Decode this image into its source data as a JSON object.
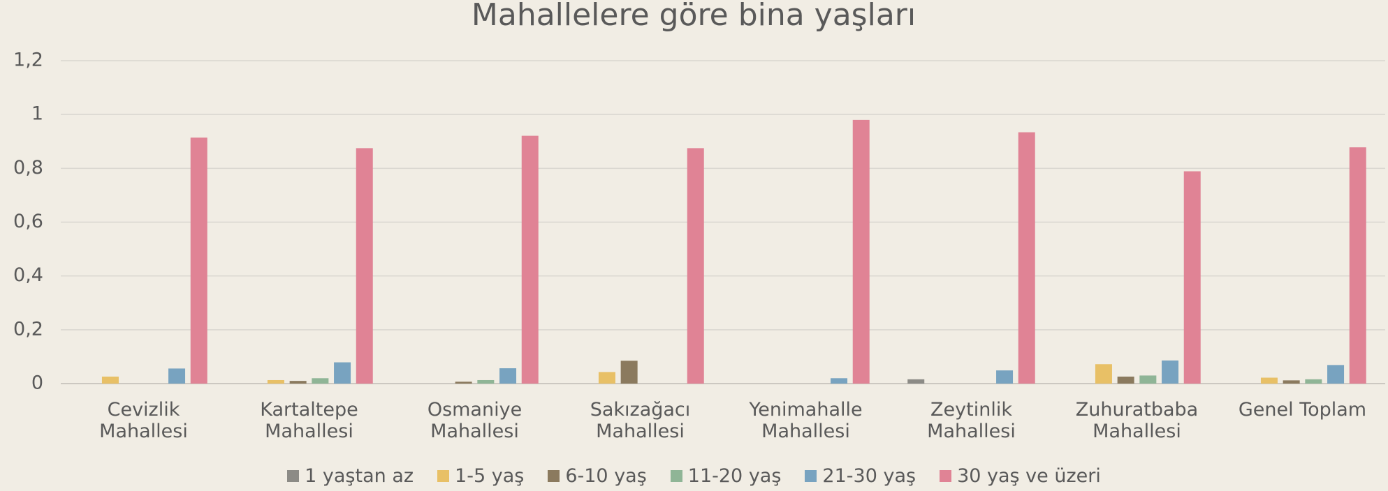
{
  "chart_data": {
    "type": "bar",
    "title": "Mahallelere göre bina yaşları",
    "categories": [
      "Cevizlik Mahallesi",
      "Kartaltepe Mahallesi",
      "Osmaniye Mahallesi",
      "Sakızağacı Mahallesi",
      "Yenimahalle Mahallesi",
      "Zeytinlik Mahallesi",
      "Zuhuratbaba Mahallesi",
      "Genel Toplam"
    ],
    "series": [
      {
        "name": "1 yaştan az",
        "color": "#8c8b86",
        "values": [
          0,
          0,
          0,
          0,
          0,
          0.016,
          0,
          0
        ]
      },
      {
        "name": "1-5 yaş",
        "color": "#e8c066",
        "values": [
          0.026,
          0.013,
          0,
          0.043,
          0,
          0,
          0.072,
          0.022
        ]
      },
      {
        "name": "6-10 yaş",
        "color": "#8b7a5e",
        "values": [
          0,
          0.01,
          0.007,
          0.085,
          0,
          0,
          0.026,
          0.012
        ]
      },
      {
        "name": "11-20 yaş",
        "color": "#8fb596",
        "values": [
          0,
          0.02,
          0.013,
          0,
          0,
          0,
          0.03,
          0.016
        ]
      },
      {
        "name": "21-30 yaş",
        "color": "#78a3c0",
        "values": [
          0.056,
          0.079,
          0.057,
          0,
          0.02,
          0.049,
          0.086,
          0.069
        ]
      },
      {
        "name": "30 yaş ve üzeri",
        "color": "#e08395",
        "values": [
          0.914,
          0.875,
          0.921,
          0.875,
          0.98,
          0.934,
          0.789,
          0.878
        ]
      }
    ],
    "ylim": [
      0,
      1.2
    ],
    "yticks": [
      0,
      {
        "value": 0.2,
        "label": "0,2"
      },
      {
        "value": 0.4,
        "label": "0,4"
      },
      {
        "value": 0.6,
        "label": "0,6"
      },
      {
        "value": 0.8,
        "label": "0,8"
      },
      1,
      {
        "value": 1.2,
        "label": "1,2"
      }
    ],
    "grid": true,
    "legend": "bottom"
  }
}
